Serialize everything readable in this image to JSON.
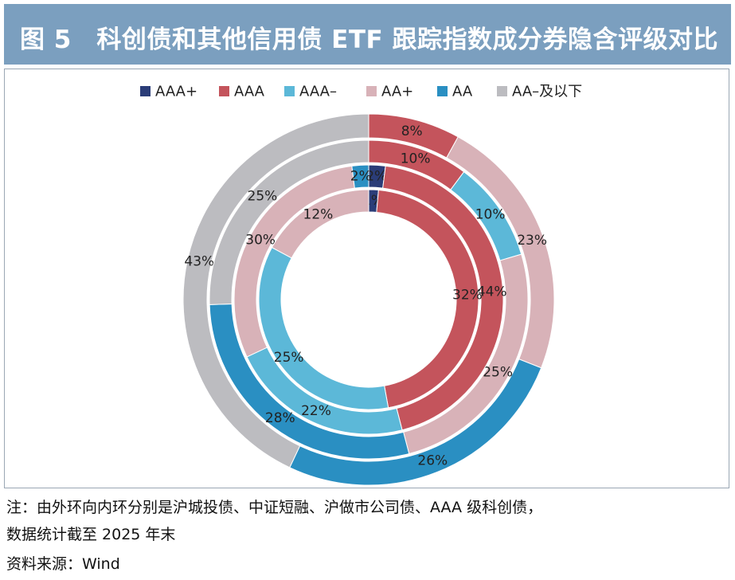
{
  "figure": {
    "title": "图 5　科创债和其他信用债 ETF 跟踪指数成分券隐含评级对比",
    "note_line1": "注：由外环向内环分别是沪城投债、中证短融、沪做市公司债、AAA 级科创债，",
    "note_line2": "数据统计截至 2025 年末",
    "source": "资料来源：Wind"
  },
  "chart_data": {
    "type": "pie",
    "subtype": "nested-donut",
    "legend_position": "top",
    "categories": [
      "AAA+",
      "AAA",
      "AAA–",
      "AA+",
      "AA",
      "AA–及以下"
    ],
    "colors": [
      "#2b3d78",
      "#c4545c",
      "#5cb8d8",
      "#d8b2b8",
      "#2a8fc2",
      "#bcbcc0"
    ],
    "rings": [
      {
        "values": [
          0,
          8,
          0,
          23,
          26,
          43
        ],
        "labels": [
          "",
          "8%",
          "",
          "23%",
          "26%",
          "43%"
        ]
      },
      {
        "values": [
          0,
          10,
          10,
          25,
          28,
          25
        ],
        "labels": [
          "",
          "10%",
          "10%",
          "25%",
          "28%",
          "25%"
        ]
      },
      {
        "values": [
          2,
          44,
          22,
          30,
          2,
          0
        ],
        "labels": [
          "2%",
          "44%",
          "22%",
          "30%",
          "2%",
          ""
        ]
      },
      {
        "values": [
          1,
          32,
          25,
          12,
          0,
          0
        ],
        "labels": [
          "1%",
          "32%",
          "25%",
          "12%",
          "",
          ""
        ]
      }
    ]
  }
}
